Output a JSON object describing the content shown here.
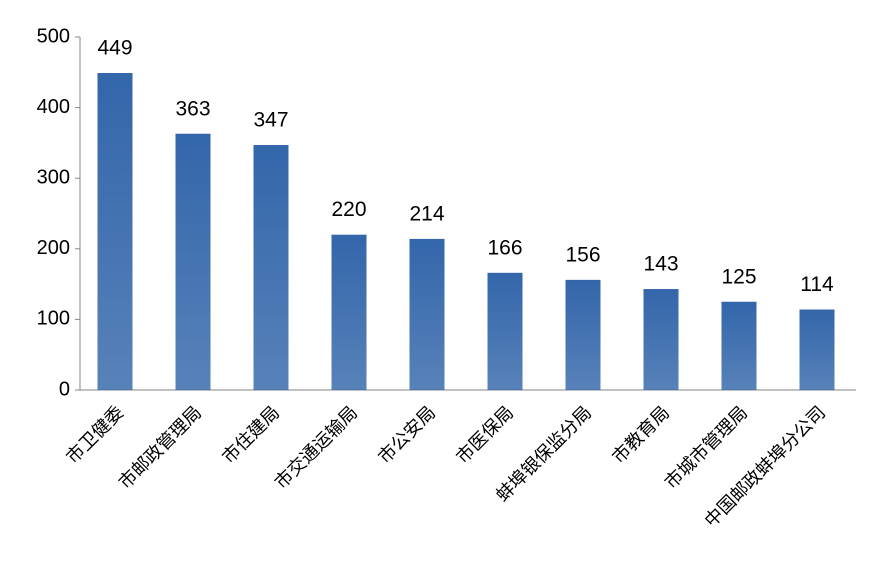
{
  "chart_data": {
    "type": "bar",
    "categories": [
      "市卫健委",
      "市邮政管理局",
      "市住建局",
      "市交通运输局",
      "市公安局",
      "市医保局",
      "蚌埠银保监分局",
      "市教育局",
      "市城市管理局",
      "中国邮政蚌埠分公司"
    ],
    "values": [
      449,
      363,
      347,
      220,
      214,
      166,
      156,
      143,
      125,
      114
    ],
    "color": "#3366aa",
    "ylim": [
      0,
      500
    ],
    "yticks": [
      0,
      100,
      200,
      300,
      400,
      500
    ],
    "grid": false
  }
}
